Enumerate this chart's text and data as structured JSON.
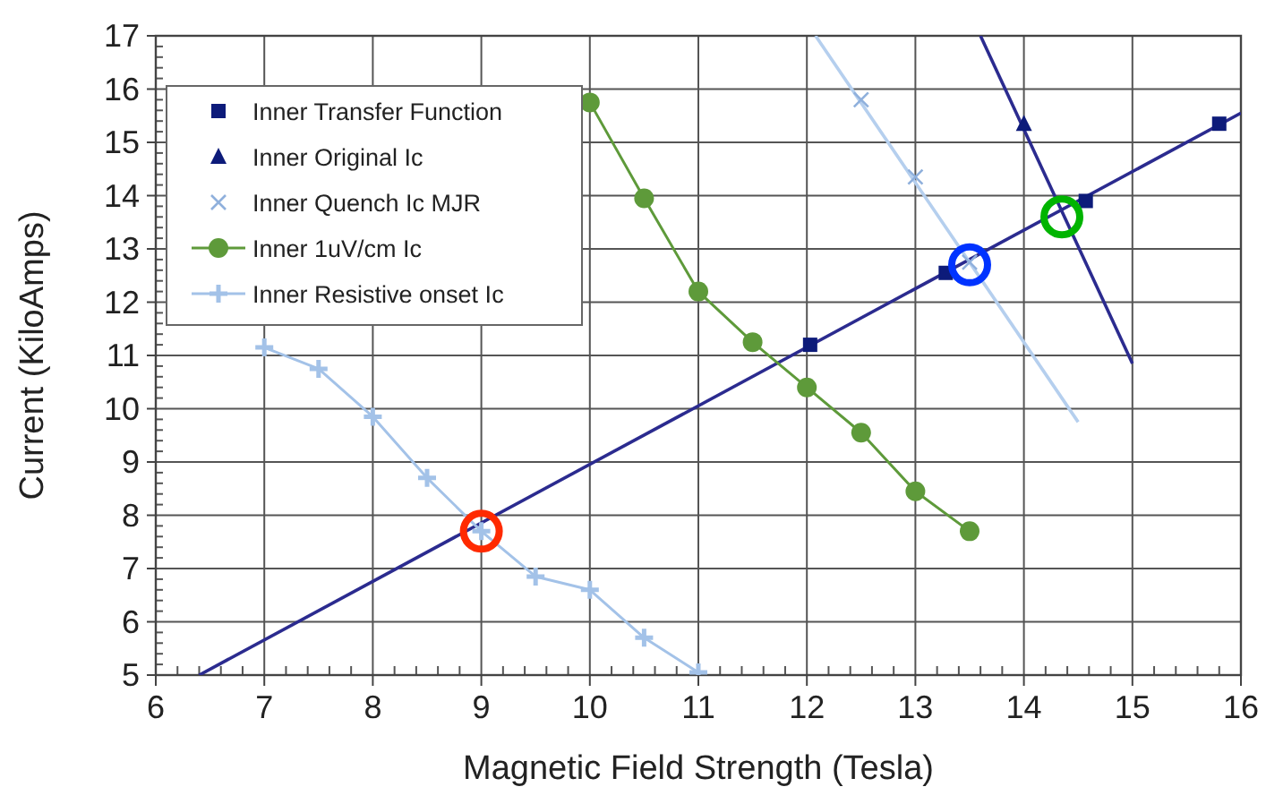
{
  "chart_data": {
    "type": "line",
    "xlabel": "Magnetic Field Strength (Tesla)",
    "ylabel": "Current (KiloAmps)",
    "xlim": [
      6,
      16
    ],
    "ylim": [
      5,
      17
    ],
    "xticks": [
      6,
      7,
      8,
      9,
      10,
      11,
      12,
      13,
      14,
      15,
      16
    ],
    "yticks": [
      5,
      6,
      7,
      8,
      9,
      10,
      11,
      12,
      13,
      14,
      15,
      16,
      17
    ],
    "grid": true,
    "legend": "top left",
    "series": [
      {
        "color": "#2b2b8f",
        "x": [
          6.4,
          16
        ],
        "values": [
          5,
          15.55
        ],
        "marker": "none"
      },
      {
        "color": "#2b2b8f",
        "x": [
          13.6,
          15
        ],
        "values": [
          17,
          10.85
        ],
        "marker": "none"
      },
      {
        "color": "#b5cfee",
        "x": [
          12.08,
          14.5
        ],
        "values": [
          17,
          9.75
        ],
        "marker": "none"
      },
      {
        "type": "scatter",
        "name": "Inner Transfer Function",
        "color": "#0d1b7a",
        "x": [
          12.03,
          13.28,
          14.57,
          15.8
        ],
        "values": [
          11.2,
          12.55,
          13.9,
          15.35
        ],
        "marker": "square"
      },
      {
        "type": "scatter",
        "name": "Inner Original Ic",
        "color": "#0d1b7a",
        "x": [
          14
        ],
        "values": [
          15.35
        ],
        "marker": "triangle"
      },
      {
        "type": "scatter",
        "name": "Inner Quench Ic MJR",
        "color": "#8fb0dc",
        "x": [
          12.5,
          13,
          13.5
        ],
        "values": [
          15.8,
          14.35,
          12.75
        ],
        "marker": "cross"
      },
      {
        "name": "Inner 1uV/cm Ic",
        "color": "#5e9a3a",
        "x": [
          10,
          10.5,
          11,
          11.5,
          12,
          12.5,
          13,
          13.5
        ],
        "values": [
          15.75,
          13.95,
          12.2,
          11.25,
          10.4,
          9.55,
          8.45,
          7.7
        ],
        "marker": "circle"
      },
      {
        "name": "Inner Resistive onset Ic",
        "color": "#a3c2e8",
        "x": [
          7,
          7.5,
          8,
          8.5,
          9,
          9.5,
          10,
          10.5,
          11
        ],
        "values": [
          11.15,
          10.75,
          9.85,
          8.7,
          7.7,
          6.85,
          6.6,
          5.7,
          5.05
        ],
        "marker": "cross"
      },
      {
        "type": "scatter",
        "color": "#ff2a00",
        "x": [
          9
        ],
        "values": [
          7.7
        ],
        "marker": "circle"
      },
      {
        "type": "scatter",
        "color": "#0033ff",
        "x": [
          13.5
        ],
        "values": [
          12.7
        ],
        "marker": "circle"
      },
      {
        "type": "scatter",
        "color": "#00b400",
        "x": [
          14.35
        ],
        "values": [
          13.6
        ],
        "marker": "circle"
      }
    ]
  }
}
